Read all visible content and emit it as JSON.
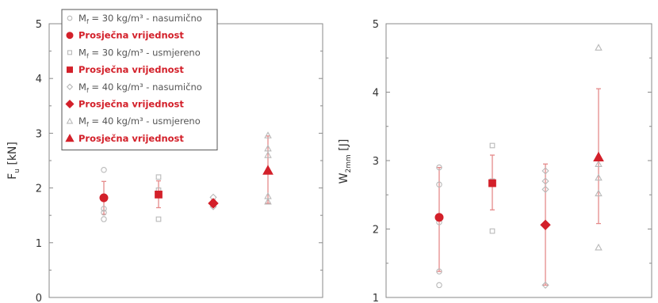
{
  "colors": {
    "red": "#d3202a",
    "gray": "#b9b9b9",
    "axis": "#8a8a8a",
    "text": "#333333",
    "errbar": "#e58a8a"
  },
  "chart_data": [
    {
      "type": "scatter",
      "ylabel": "F",
      "ylabel_sub": "u",
      "ylabel_unit": "[kN]",
      "ylim": [
        0,
        5
      ],
      "yticks": [
        "0",
        "1",
        "2",
        "3",
        "4",
        "5"
      ],
      "xlim": [
        0,
        5
      ],
      "legend": {
        "placement": "top-left",
        "entries": [
          {
            "marker": "circle",
            "filled": false,
            "text_pre": "M",
            "text_sub": "f",
            "text_post": " = 30 kg/m³ - nasumično"
          },
          {
            "marker": "circle",
            "filled": true,
            "text": "Prosječna vrijednost"
          },
          {
            "marker": "square",
            "filled": false,
            "text_pre": "M",
            "text_sub": "f",
            "text_post": " = 30 kg/m³ - usmjereno"
          },
          {
            "marker": "square",
            "filled": true,
            "text": "Prosječna vrijednost"
          },
          {
            "marker": "diamond",
            "filled": false,
            "text_pre": "M",
            "text_sub": "f",
            "text_post": " = 40 kg/m³ - nasumično"
          },
          {
            "marker": "diamond",
            "filled": true,
            "text": "Prosječna vrijednost"
          },
          {
            "marker": "triangle",
            "filled": false,
            "text_pre": "M",
            "text_sub": "f",
            "text_post": " = 40 kg/m³ - usmjereno"
          },
          {
            "marker": "triangle",
            "filled": true,
            "text": "Prosječna vrijednost"
          }
        ]
      },
      "series": [
        {
          "marker": "circle",
          "x": 1,
          "samples": [
            2.33,
            1.62,
            1.55,
            1.43
          ],
          "mean": 1.82,
          "err": [
            1.52,
            2.12
          ]
        },
        {
          "marker": "square",
          "x": 2,
          "samples": [
            2.2,
            1.96,
            1.87,
            1.43
          ],
          "mean": 1.88,
          "err": [
            1.64,
            2.13
          ]
        },
        {
          "marker": "diamond",
          "x": 3,
          "samples": [
            1.83,
            1.71,
            1.66
          ],
          "mean": 1.72,
          "err": [
            1.66,
            1.78
          ]
        },
        {
          "marker": "triangle",
          "x": 4,
          "samples": [
            2.96,
            2.72,
            2.6,
            1.85,
            1.75
          ],
          "mean": 2.32,
          "err": [
            1.72,
            2.95
          ]
        }
      ]
    },
    {
      "type": "scatter",
      "ylabel": "W",
      "ylabel_sub": "2mm",
      "ylabel_unit": "[J]",
      "ylim": [
        1,
        5
      ],
      "yticks": [
        "1",
        "2",
        "3",
        "4",
        "5"
      ],
      "xlim": [
        0,
        5
      ],
      "series": [
        {
          "marker": "circle",
          "x": 1,
          "samples": [
            2.9,
            2.65,
            2.1,
            1.38,
            1.18
          ],
          "mean": 2.17,
          "err": [
            1.38,
            2.9
          ]
        },
        {
          "marker": "square",
          "x": 2,
          "samples": [
            3.22,
            2.7,
            1.97
          ],
          "mean": 2.67,
          "err": [
            2.28,
            3.08
          ]
        },
        {
          "marker": "diamond",
          "x": 3,
          "samples": [
            2.85,
            2.7,
            2.58,
            1.18
          ],
          "mean": 2.06,
          "err": [
            1.18,
            2.95
          ]
        },
        {
          "marker": "triangle",
          "x": 4,
          "samples": [
            4.65,
            2.95,
            2.75,
            2.52,
            1.73
          ],
          "mean": 3.05,
          "err": [
            2.08,
            4.05
          ]
        }
      ]
    }
  ]
}
